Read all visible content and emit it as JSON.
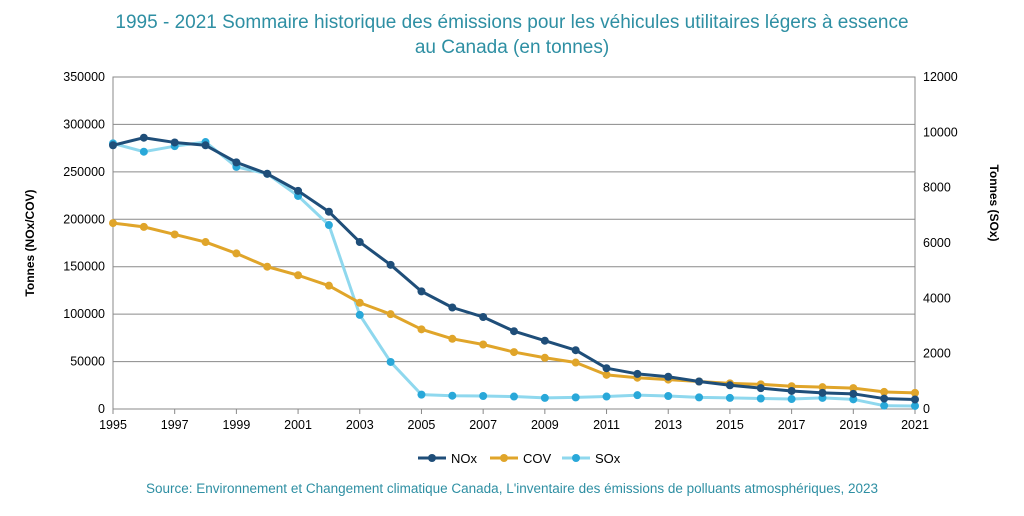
{
  "title_line1": "1995 - 2021 Sommaire historique des émissions pour les véhicules utilitaires légers à essence",
  "title_line2": "au Canada (en tonnes)",
  "source": "Source:  Environnement et Changement climatique Canada, L'inventaire des émissions de polluants atmosphériques, 2023",
  "chart_data": {
    "type": "line",
    "title": "1995 - 2021 Sommaire historique des émissions pour les véhicules utilitaires légers à essence au Canada (en tonnes)",
    "x": [
      1995,
      1996,
      1997,
      1998,
      1999,
      2000,
      2001,
      2002,
      2003,
      2004,
      2005,
      2006,
      2007,
      2008,
      2009,
      2010,
      2011,
      2012,
      2013,
      2014,
      2015,
      2016,
      2017,
      2018,
      2019,
      2020,
      2021
    ],
    "xlim": [
      1995,
      2021
    ],
    "x_ticks": [
      "1995",
      "1997",
      "1999",
      "2001",
      "2003",
      "2005",
      "2007",
      "2009",
      "2011",
      "2013",
      "2015",
      "2017",
      "2019",
      "2021"
    ],
    "ylabel_left": "Tonnes (NOx/COV)",
    "ylim_left": [
      0,
      350000
    ],
    "y_ticks_left": [
      "0",
      "50000",
      "100000",
      "150000",
      "200000",
      "250000",
      "300000",
      "350000"
    ],
    "ylabel_right": "Tonnes (SOx)",
    "ylim_right": [
      0,
      12000
    ],
    "y_ticks_right": [
      "0",
      "2000",
      "4000",
      "6000",
      "8000",
      "10000",
      "12000"
    ],
    "grid": true,
    "legend": "bottom",
    "series": [
      {
        "name": "NOx",
        "axis": "left",
        "color": "#1f4e79",
        "values": [
          278000,
          286000,
          281000,
          278000,
          260000,
          248000,
          230000,
          208000,
          176000,
          152000,
          124000,
          107000,
          97000,
          82000,
          72000,
          62000,
          43000,
          37000,
          34000,
          29000,
          25000,
          22000,
          19000,
          17000,
          16000,
          11000,
          10000
        ]
      },
      {
        "name": "COV",
        "axis": "left",
        "color": "#e0a52a",
        "values": [
          196000,
          192000,
          184000,
          176000,
          164000,
          150000,
          141000,
          130000,
          112000,
          100000,
          84000,
          74000,
          68000,
          60000,
          54000,
          49000,
          36000,
          33000,
          31000,
          29000,
          27000,
          26000,
          24000,
          23000,
          22000,
          18000,
          17000
        ]
      },
      {
        "name": "SOx",
        "axis": "right",
        "color": "#8fd8ee",
        "marker_color": "#29a8d9",
        "values": [
          9600,
          9300,
          9500,
          9650,
          8750,
          8500,
          7700,
          6650,
          3400,
          1700,
          520,
          480,
          470,
          450,
          400,
          420,
          450,
          500,
          470,
          420,
          400,
          380,
          360,
          400,
          350,
          120,
          110
        ]
      }
    ]
  }
}
